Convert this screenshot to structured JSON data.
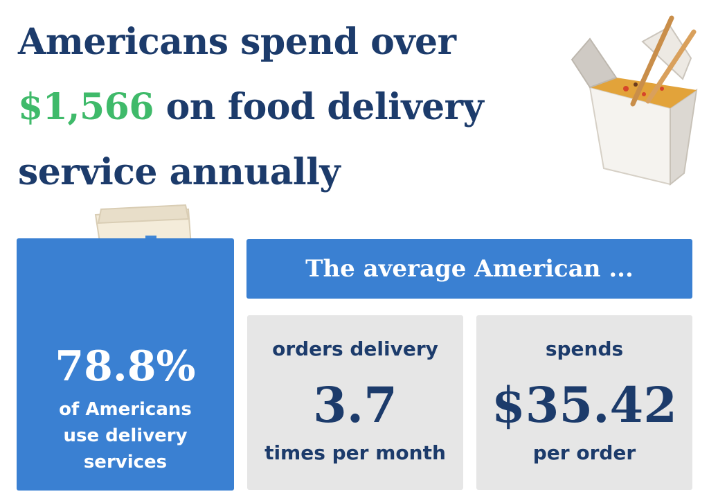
{
  "headline": {
    "line1": "Americans spend over",
    "amount": "$1,566",
    "line2_rest": " on food delivery",
    "line3": "service annually"
  },
  "left_card": {
    "percent": "78.8%",
    "line1": "of Americans",
    "line2": "use delivery",
    "line3": "services"
  },
  "banner": {
    "text": "The average American ..."
  },
  "stats": [
    {
      "top": "orders delivery",
      "value": "3.7",
      "bottom": "times per month"
    },
    {
      "top": "spends",
      "value": "$35.42",
      "bottom": "per order"
    }
  ],
  "colors": {
    "navy": "#1c3b6b",
    "green": "#3fba6a",
    "blue": "#3a80d2",
    "gray": "#e6e6e6"
  },
  "icons": [
    "takeout-box-icon",
    "fast-food-bag-icon",
    "burger-icon",
    "drink-cup-icon"
  ]
}
